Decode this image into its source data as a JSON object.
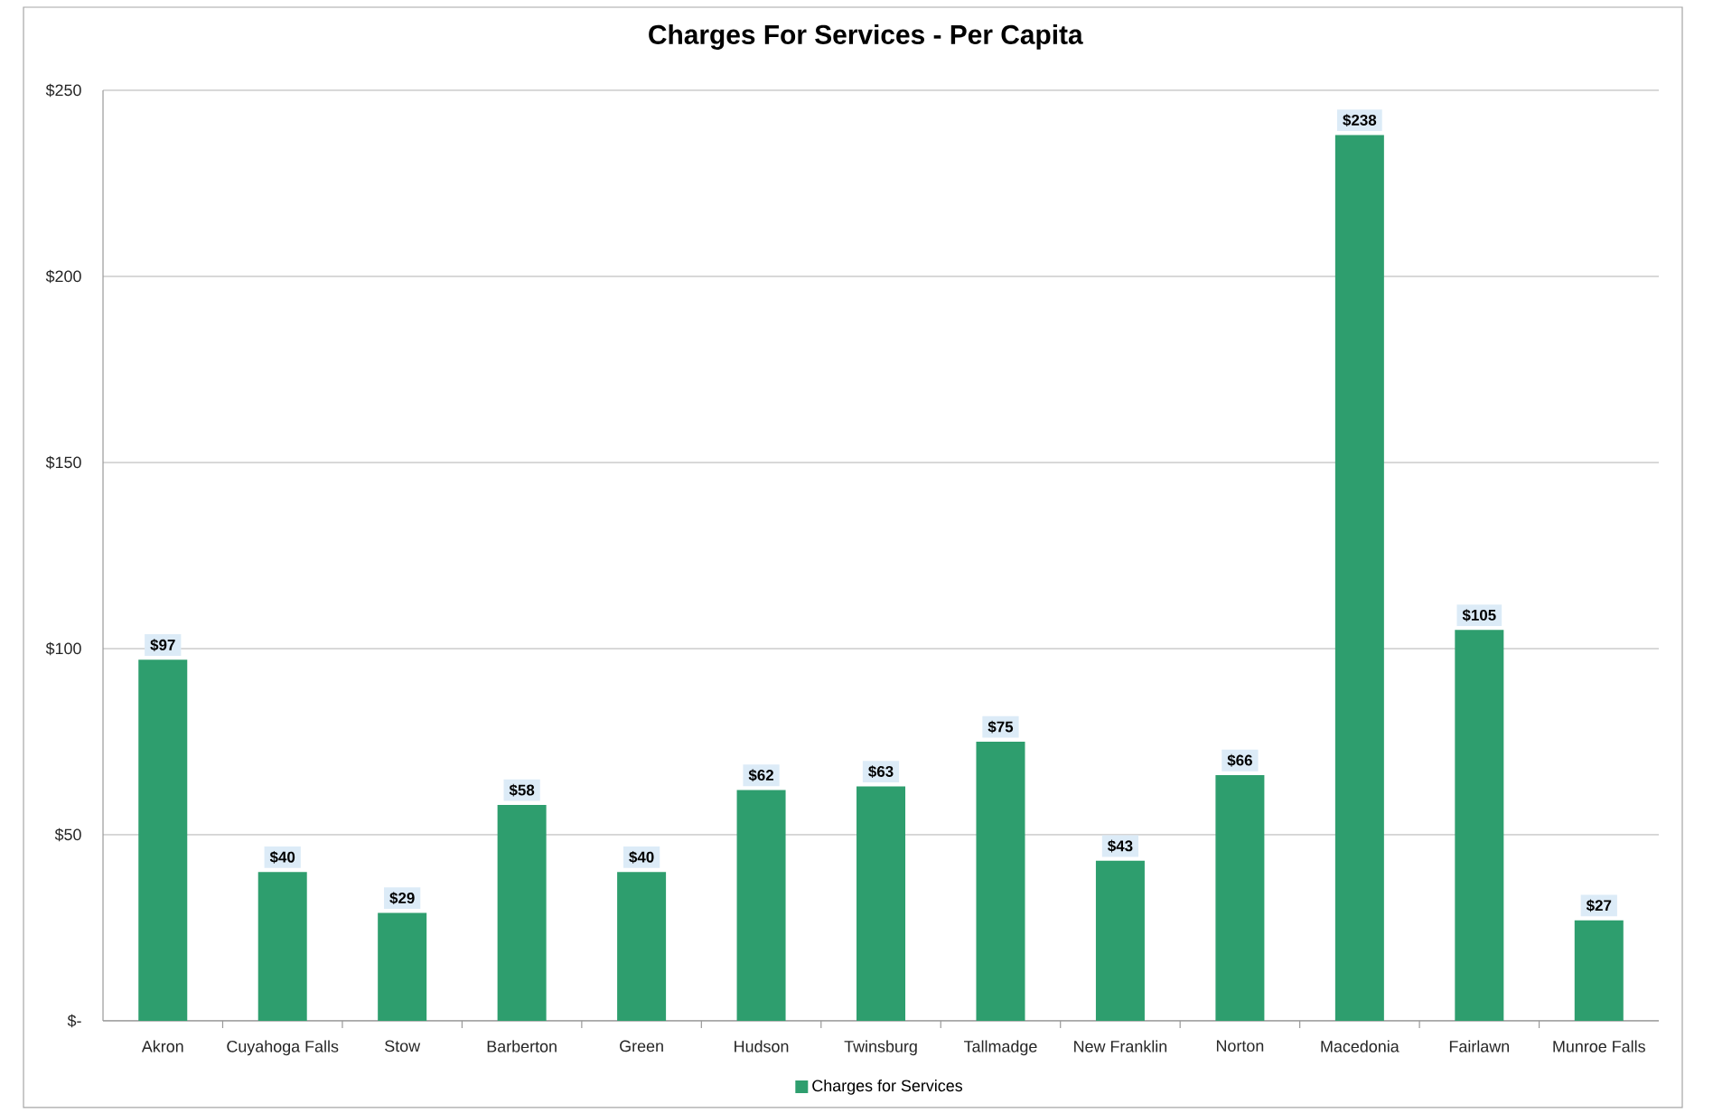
{
  "chart_data": {
    "type": "bar",
    "title": "Charges For Services - Per Capita",
    "categories": [
      "Akron",
      "Cuyahoga Falls",
      "Stow",
      "Barberton",
      "Green",
      "Hudson",
      "Twinsburg",
      "Tallmadge",
      "New Franklin",
      "Norton",
      "Macedonia",
      "Fairlawn",
      "Munroe Falls"
    ],
    "series": [
      {
        "name": "Charges for Services",
        "color": "#2e9e6e",
        "values": [
          97,
          40,
          29,
          58,
          40,
          62,
          63,
          75,
          43,
          66,
          238,
          105,
          27
        ],
        "value_labels": [
          "$97",
          "$40",
          "$29",
          "$58",
          "$40",
          "$62",
          "$63",
          "$75",
          "$43",
          "$66",
          "$238",
          "$105",
          "$27"
        ]
      }
    ],
    "ylim": [
      0,
      250
    ],
    "yticks": [
      {
        "value": 0,
        "label": "$-"
      },
      {
        "value": 50,
        "label": "$50"
      },
      {
        "value": 100,
        "label": "$100"
      },
      {
        "value": 150,
        "label": "$150"
      },
      {
        "value": 200,
        "label": "$200"
      },
      {
        "value": 250,
        "label": "$250"
      }
    ],
    "grid": "y",
    "legend": "bottom"
  }
}
